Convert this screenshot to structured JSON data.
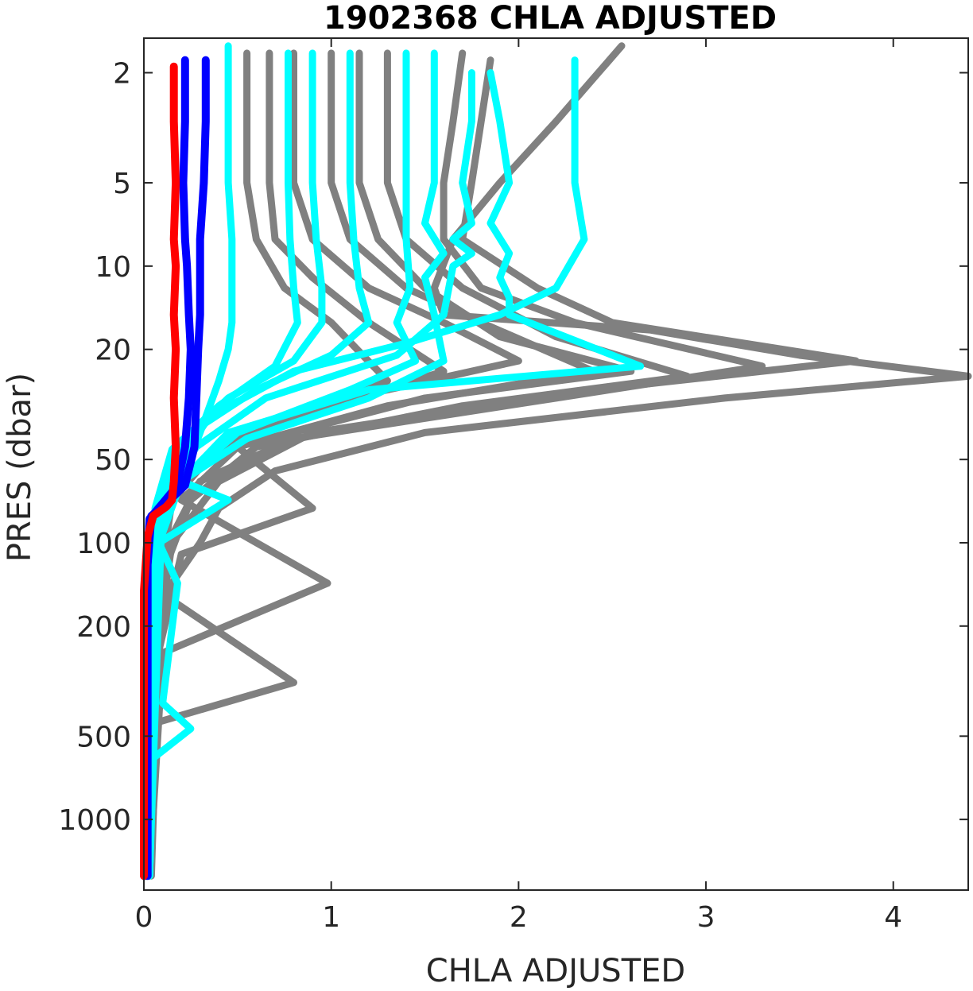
{
  "chart_data": {
    "type": "line",
    "title": "1902368  CHLA ADJUSTED",
    "xlabel": "CHLA ADJUSTED",
    "ylabel": "PRES (dbar)",
    "xlim": [
      0,
      4.4
    ],
    "ylim": [
      1.5,
      1800
    ],
    "y_scale": "log",
    "y_reversed": true,
    "grid": false,
    "x_ticks": [
      0,
      1,
      2,
      3,
      4
    ],
    "x_tick_labels": [
      "0",
      "1",
      "2",
      "3",
      "4"
    ],
    "y_ticks": [
      2,
      5,
      10,
      20,
      50,
      100,
      200,
      500,
      1000
    ],
    "y_tick_labels": [
      "2",
      "5",
      "10",
      "20",
      "50",
      "100",
      "200",
      "500",
      "1000"
    ],
    "colors": {
      "older": "#808080",
      "recent": "#00ffff",
      "previous": "#0000ff",
      "latest": "#ff0000"
    },
    "series": [
      {
        "group": "older",
        "color": "#808080",
        "x": [
          2.55,
          2.2,
          1.9,
          1.65,
          1.55,
          1.6,
          2.7,
          3.5,
          4.4,
          3.1,
          1.5,
          0.7,
          0.4,
          0.3,
          0.12,
          0.05,
          0.02,
          0.02
        ],
        "y": [
          1.6,
          3,
          5,
          8,
          12,
          15,
          17,
          21,
          25,
          30,
          40,
          55,
          75,
          100,
          150,
          250,
          600,
          1600
        ]
      },
      {
        "group": "older",
        "color": "#808080",
        "x": [
          1.85,
          1.8,
          1.75,
          1.7,
          2.1,
          2.5,
          3.8,
          2.4,
          0.9,
          0.4,
          0.15,
          0.05,
          0.02
        ],
        "y": [
          1.8,
          3,
          5,
          8,
          12,
          16,
          22,
          28,
          40,
          60,
          100,
          300,
          1600
        ]
      },
      {
        "group": "older",
        "color": "#808080",
        "x": [
          1.7,
          1.65,
          1.6,
          1.6,
          1.8,
          2.3,
          3.3,
          2.2,
          0.8,
          0.3,
          0.1,
          0.03,
          0.02
        ],
        "y": [
          1.7,
          3,
          5,
          8,
          12,
          16,
          23,
          30,
          42,
          60,
          110,
          400,
          1600
        ]
      },
      {
        "group": "older",
        "color": "#808080",
        "x": [
          1.3,
          1.3,
          1.3,
          1.4,
          1.7,
          2.2,
          2.9,
          1.7,
          0.6,
          0.25,
          0.1,
          0.03
        ],
        "y": [
          1.7,
          3,
          5,
          8,
          12,
          18,
          25,
          32,
          45,
          70,
          130,
          1600
        ]
      },
      {
        "group": "older",
        "color": "#808080",
        "x": [
          1.15,
          1.15,
          1.15,
          1.25,
          1.5,
          1.9,
          2.6,
          1.5,
          0.5,
          0.9,
          0.2,
          0.05,
          0.02
        ],
        "y": [
          1.7,
          3,
          5,
          8,
          12,
          18,
          24,
          30,
          45,
          75,
          110,
          300,
          1600
        ]
      },
      {
        "group": "older",
        "color": "#808080",
        "x": [
          1.0,
          1.0,
          1.0,
          1.1,
          1.4,
          1.8,
          2.4,
          1.3,
          0.5,
          0.2,
          0.98,
          0.1,
          0.03
        ],
        "y": [
          1.7,
          3,
          5,
          8,
          12,
          16,
          24,
          32,
          45,
          70,
          140,
          250,
          1600
        ]
      },
      {
        "group": "older",
        "color": "#808080",
        "x": [
          0.8,
          0.8,
          0.8,
          0.9,
          1.2,
          1.6,
          2.0,
          1.1,
          0.4,
          0.15,
          0.08,
          0.8,
          0.05,
          0.02
        ],
        "y": [
          1.7,
          3,
          5,
          8,
          12,
          16,
          22,
          30,
          45,
          70,
          150,
          320,
          450,
          1600
        ]
      },
      {
        "group": "older",
        "color": "#808080",
        "x": [
          0.67,
          0.67,
          0.67,
          0.7,
          0.9,
          1.2,
          1.6,
          0.9,
          0.35,
          0.12,
          0.05,
          0.03
        ],
        "y": [
          1.7,
          3,
          5,
          8,
          11,
          16,
          24,
          34,
          48,
          75,
          200,
          1600
        ]
      },
      {
        "group": "older",
        "color": "#808080",
        "x": [
          0.55,
          0.55,
          0.55,
          0.6,
          0.75,
          1.0,
          1.3,
          0.7,
          0.3,
          0.1,
          0.04
        ],
        "y": [
          1.7,
          3,
          5,
          8,
          12,
          16,
          26,
          36,
          52,
          80,
          1600
        ]
      },
      {
        "group": "recent",
        "color": "#00ffff",
        "x": [
          2.3,
          2.3,
          2.3,
          2.35,
          2.2,
          1.9,
          1.4,
          0.8,
          0.35,
          0.12,
          0.05,
          0.02
        ],
        "y": [
          1.8,
          3,
          5,
          8,
          12,
          15,
          19,
          24,
          35,
          60,
          120,
          1600
        ]
      },
      {
        "group": "recent",
        "color": "#00ffff",
        "x": [
          1.85,
          1.9,
          1.95,
          1.85,
          1.95,
          1.9,
          1.95,
          1.95,
          2.65,
          1.2,
          0.45,
          0.15,
          0.05,
          0.02
        ],
        "y": [
          2.0,
          3,
          5,
          7,
          9,
          11,
          13,
          15,
          23,
          28,
          40,
          65,
          130,
          1600
        ]
      },
      {
        "group": "recent",
        "color": "#00ffff",
        "x": [
          1.75,
          1.75,
          1.7,
          1.75,
          1.65,
          1.75,
          1.65,
          1.6,
          1.35,
          0.65,
          0.28,
          0.1,
          0.04,
          0.02
        ],
        "y": [
          2.0,
          3,
          5,
          7,
          8,
          9,
          10,
          15,
          21,
          30,
          45,
          70,
          130,
          1600
        ]
      },
      {
        "group": "recent",
        "color": "#00ffff",
        "x": [
          1.55,
          1.55,
          1.55,
          1.5,
          1.6,
          1.5,
          1.55,
          1.6,
          1.2,
          0.55,
          0.2,
          0.08,
          0.03
        ],
        "y": [
          1.7,
          3,
          5,
          7,
          9,
          11,
          15,
          22,
          30,
          42,
          60,
          100,
          1600
        ]
      },
      {
        "group": "recent",
        "color": "#00ffff",
        "x": [
          1.4,
          1.4,
          1.4,
          1.4,
          1.42,
          1.35,
          1.45,
          1.1,
          0.5,
          0.2,
          0.08,
          0.03
        ],
        "y": [
          1.7,
          3,
          5,
          8,
          12,
          16,
          22,
          28,
          40,
          60,
          100,
          1600
        ]
      },
      {
        "group": "recent",
        "color": "#00ffff",
        "x": [
          1.1,
          1.1,
          1.1,
          1.12,
          1.15,
          1.2,
          1.0,
          0.6,
          0.25,
          0.1,
          0.03
        ],
        "y": [
          1.7,
          3,
          5,
          8,
          12,
          16,
          21,
          28,
          40,
          65,
          1600
        ]
      },
      {
        "group": "recent",
        "color": "#00ffff",
        "x": [
          0.9,
          0.9,
          0.9,
          0.92,
          0.95,
          0.95,
          0.8,
          0.45,
          0.2,
          0.08,
          0.03
        ],
        "y": [
          1.7,
          3,
          5,
          8,
          12,
          16,
          22,
          30,
          44,
          70,
          1600
        ]
      },
      {
        "group": "recent",
        "color": "#00ffff",
        "x": [
          0.77,
          0.77,
          0.77,
          0.78,
          0.8,
          0.82,
          0.7,
          0.4,
          0.15,
          0.06,
          0.02
        ],
        "y": [
          1.7,
          3,
          5,
          8,
          12,
          16,
          23,
          32,
          46,
          75,
          1600
        ]
      },
      {
        "group": "recent",
        "color": "#00ffff",
        "x": [
          0.45,
          0.45,
          0.45,
          0.47,
          0.47,
          0.47,
          0.45,
          0.4,
          0.3,
          0.2,
          0.45,
          0.08,
          0.18,
          0.1,
          0.25,
          0.05,
          0.02
        ],
        "y": [
          1.6,
          3,
          5,
          8,
          12,
          16,
          20,
          26,
          40,
          60,
          70,
          100,
          140,
          380,
          470,
          600,
          1600
        ]
      },
      {
        "group": "previous",
        "color": "#0000ff",
        "x": [
          0.33,
          0.33,
          0.32,
          0.3,
          0.3,
          0.3,
          0.29,
          0.28,
          0.27,
          0.22,
          0.12,
          0.04,
          0.02,
          0.02,
          0.02
        ],
        "y": [
          1.8,
          3,
          5,
          8,
          10,
          15,
          20,
          30,
          45,
          62,
          72,
          80,
          120,
          500,
          1600
        ]
      },
      {
        "group": "previous",
        "color": "#0000ff",
        "x": [
          0.22,
          0.22,
          0.21,
          0.22,
          0.23,
          0.24,
          0.25,
          0.24,
          0.22,
          0.18,
          0.1,
          0.03,
          0.01,
          0.01
        ],
        "y": [
          1.8,
          3,
          5,
          8,
          10,
          15,
          20,
          30,
          45,
          62,
          72,
          82,
          150,
          1600
        ]
      },
      {
        "group": "latest",
        "color": "#ff0000",
        "x": [
          0.16,
          0.16,
          0.17,
          0.16,
          0.17,
          0.16,
          0.17,
          0.16,
          0.17,
          0.16,
          0.15,
          0.12,
          0.05,
          0.02,
          0.0,
          0.0,
          0.0
        ],
        "y": [
          1.9,
          3,
          5,
          8,
          10,
          15,
          20,
          30,
          45,
          60,
          70,
          74,
          80,
          95,
          150,
          500,
          1600
        ]
      }
    ]
  }
}
